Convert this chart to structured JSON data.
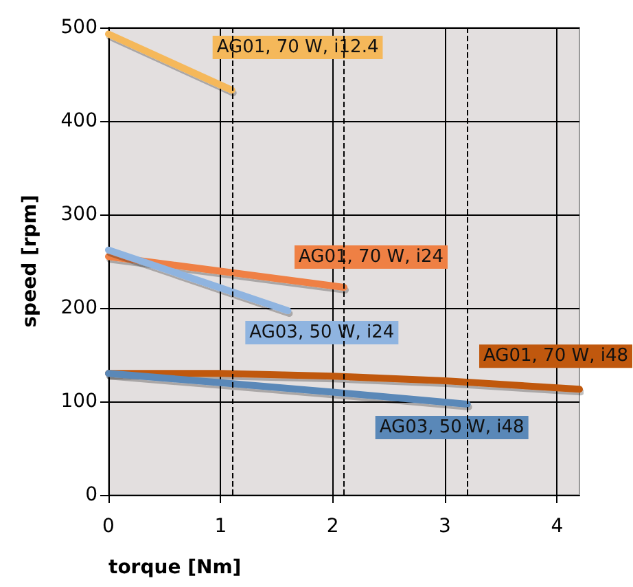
{
  "chart_data": {
    "type": "line",
    "xlabel": "torque [Nm]",
    "ylabel": "speed [rpm]",
    "xlim": [
      0,
      4.2
    ],
    "xticks": [
      0,
      1,
      2,
      3,
      4
    ],
    "ylim": [
      0,
      500
    ],
    "yticks": [
      0,
      100,
      200,
      300,
      400,
      500
    ],
    "grid": true,
    "legend": false,
    "marker": "none",
    "line_style": "solid",
    "ref_lines": [
      {
        "axis": "x",
        "value": 1.1,
        "line_style": "dashed",
        "color": "#000000"
      },
      {
        "axis": "x",
        "value": 2.1,
        "line_style": "dashed",
        "color": "#000000"
      },
      {
        "axis": "x",
        "value": 3.2,
        "line_style": "dashed",
        "color": "#000000"
      }
    ],
    "series": [
      {
        "name": "AG01, 70 W, i12.4",
        "color": "#f5b85a",
        "x": [
          0,
          1.1
        ],
        "values": [
          493,
          433
        ]
      },
      {
        "name": "AG01, 70 W, i24",
        "color": "#ef8044",
        "x": [
          0,
          2.1
        ],
        "values": [
          255,
          222
        ]
      },
      {
        "name": "AG03, 50 W, i24",
        "color": "#8fb4e0",
        "x": [
          0,
          1.6
        ],
        "values": [
          262,
          197
        ]
      },
      {
        "name": "AG01, 70 W, i48",
        "color": "#c0580e",
        "x": [
          0,
          1,
          2,
          3,
          4.2
        ],
        "values": [
          130,
          130,
          127,
          122,
          113
        ]
      },
      {
        "name": "AG03, 50 W, i48",
        "color": "#5a88b8",
        "x": [
          0,
          1,
          2,
          3.2
        ],
        "values": [
          130,
          120,
          110,
          97
        ]
      }
    ]
  }
}
